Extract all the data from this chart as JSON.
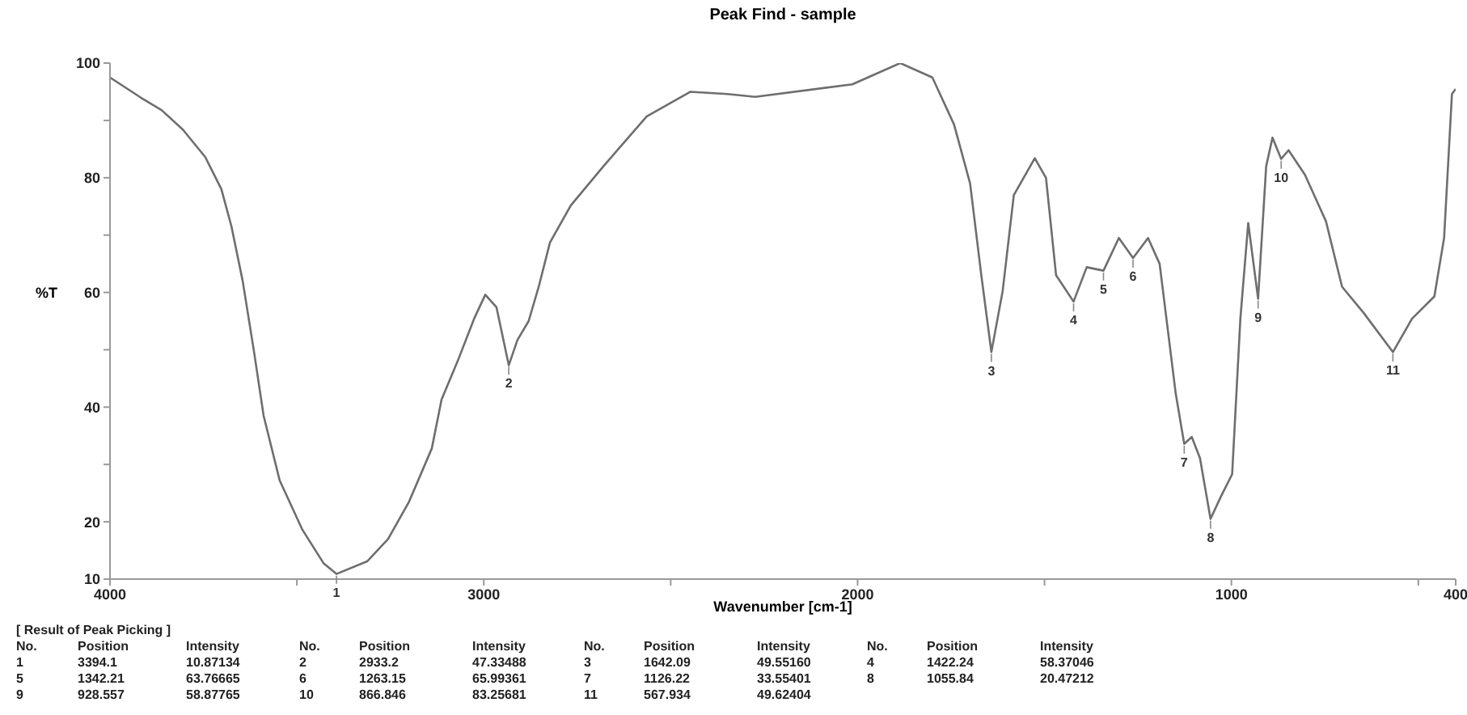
{
  "chart_data": {
    "type": "line",
    "title": "Peak Find - sample",
    "xlabel": "Wavenumber [cm-1]",
    "ylabel": "%T",
    "x": [
      4000,
      3918,
      3862,
      3805,
      3745,
      3702,
      3675,
      3645,
      3615,
      3589,
      3546,
      3486,
      3429,
      3394.1,
      3312,
      3256,
      3200,
      3139,
      3113,
      3070,
      3026,
      2996,
      2966,
      2933.2,
      2910,
      2880,
      2853,
      2823,
      2767,
      2680,
      2564,
      2447,
      2348,
      2274,
      2014,
      1886,
      1800,
      1742,
      1699,
      1669,
      1642.09,
      1612,
      1582,
      1526,
      1496,
      1469,
      1422.24,
      1387,
      1342.21,
      1301,
      1263.15,
      1223,
      1192,
      1149,
      1126.22,
      1106,
      1084,
      1055.84,
      1028,
      998,
      976,
      955,
      928.557,
      907,
      890,
      866.846,
      847,
      803,
      747,
      704,
      647,
      567.934,
      517,
      457,
      431,
      410,
      400
    ],
    "series": [
      {
        "color": "#6e6e6e",
        "values": [
          97.5,
          94,
          91.8,
          88.4,
          83.6,
          78,
          71.5,
          62,
          49.8,
          38.5,
          27.2,
          18.7,
          12.8,
          10.9,
          13.1,
          17,
          23.5,
          32.8,
          41.3,
          48,
          55.4,
          59.6,
          57.4,
          47.3,
          51.7,
          55,
          61,
          68.7,
          75.2,
          82,
          90.7,
          95,
          94.6,
          94.1,
          96.3,
          100,
          97.5,
          89.3,
          79,
          63,
          49.6,
          60.2,
          77,
          83.4,
          80,
          63,
          58.4,
          64.4,
          63.8,
          69.5,
          66,
          69.5,
          65,
          42.4,
          33.6,
          34.8,
          31.1,
          20.5,
          24.4,
          28.3,
          55.4,
          72.1,
          58.9,
          82,
          87,
          83.3,
          84.8,
          80.5,
          72.4,
          61,
          56.5,
          49.6,
          55.4,
          59.3,
          69.5,
          94.6,
          95.5
        ]
      }
    ],
    "xlim": [
      4000,
      400
    ],
    "xticks": [
      4000,
      {
        "value": 3500,
        "label": null
      },
      3000,
      {
        "value": 2500,
        "label": null
      },
      2000,
      {
        "value": 1500,
        "label": null
      },
      1000,
      {
        "value": 500,
        "label": null
      },
      400
    ],
    "ylim": [
      10,
      100
    ],
    "yticks": [
      10,
      20,
      {
        "value": 30,
        "label": null
      },
      40,
      {
        "value": 50,
        "label": null
      },
      60,
      {
        "value": 70,
        "label": null
      },
      80,
      {
        "value": 90,
        "label": null
      },
      100
    ],
    "grid": false,
    "marker": "none",
    "line_style": "solid",
    "annotations": [
      {
        "text": "1",
        "x": 3394.1,
        "y": 10.87134
      },
      {
        "text": "2",
        "x": 2933.2,
        "y": 47.33488
      },
      {
        "text": "3",
        "x": 1642.09,
        "y": 49.5516
      },
      {
        "text": "4",
        "x": 1422.24,
        "y": 58.37046
      },
      {
        "text": "5",
        "x": 1342.21,
        "y": 63.76665
      },
      {
        "text": "6",
        "x": 1263.15,
        "y": 65.99361
      },
      {
        "text": "7",
        "x": 1126.22,
        "y": 33.55401
      },
      {
        "text": "8",
        "x": 1055.84,
        "y": 20.47212
      },
      {
        "text": "9",
        "x": 928.557,
        "y": 58.87765
      },
      {
        "text": "10",
        "x": 866.846,
        "y": 83.25681
      },
      {
        "text": "11",
        "x": 567.934,
        "y": 49.62404
      },
      "[ Result of Peak Picking ]",
      "No.",
      "Position",
      "Intensity",
      "No.",
      "Position",
      "Intensity",
      "No.",
      "Position",
      "Intensity",
      "No.",
      "Position",
      "Intensity",
      "1",
      "3394.1",
      "10.87134",
      "2",
      "2933.2",
      "47.33488",
      "3",
      "1642.09",
      "49.55160",
      "4",
      "1422.24",
      "58.37046",
      "5",
      "1342.21",
      "63.76665",
      "6",
      "1263.15",
      "65.99361",
      "7",
      "1126.22",
      "33.55401",
      "8",
      "1055.84",
      "20.47212",
      "9",
      "928.557",
      "58.87765",
      "10",
      "866.846",
      "83.25681",
      "11",
      "567.934",
      "49.62404"
    ]
  }
}
